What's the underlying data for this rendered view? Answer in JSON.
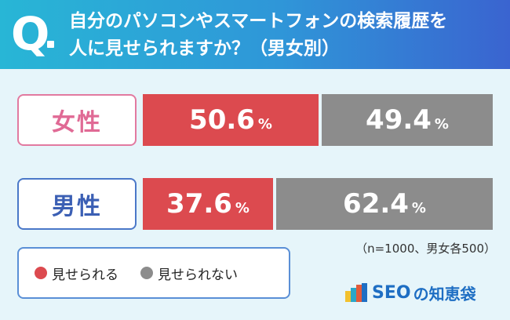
{
  "question": {
    "mark": "Q",
    "line1": "自分のパソコンやスマートフォンの検索履歴を",
    "line2": "人に見せられますか？（男女別）"
  },
  "chart_data": {
    "type": "bar",
    "orientation": "horizontal-stacked-100",
    "categories": [
      "女性",
      "男性"
    ],
    "series": [
      {
        "name": "見せられる",
        "values": [
          50.6,
          37.6
        ],
        "color": "#dc4a4f"
      },
      {
        "name": "見せられない",
        "values": [
          49.4,
          62.4
        ],
        "color": "#8c8c8c"
      }
    ],
    "unit": "%",
    "note": "（n=1000、男女各500）",
    "legend_position": "bottom-left"
  },
  "rows": [
    {
      "label": "女性",
      "show_value": "50.6",
      "noshow_value": "49.4"
    },
    {
      "label": "男性",
      "show_value": "37.6",
      "noshow_value": "62.4"
    }
  ],
  "unit_symbol": "%",
  "legend": [
    {
      "label": "見せられる",
      "color": "#dc4a4f"
    },
    {
      "label": "見せられない",
      "color": "#8c8c8c"
    }
  ],
  "logo": {
    "seo": "SEO",
    "jp": "の知恵袋",
    "mark_colors": [
      "#f2c12e",
      "#2aa7c9",
      "#e25b3a",
      "#1e6ec3"
    ]
  }
}
